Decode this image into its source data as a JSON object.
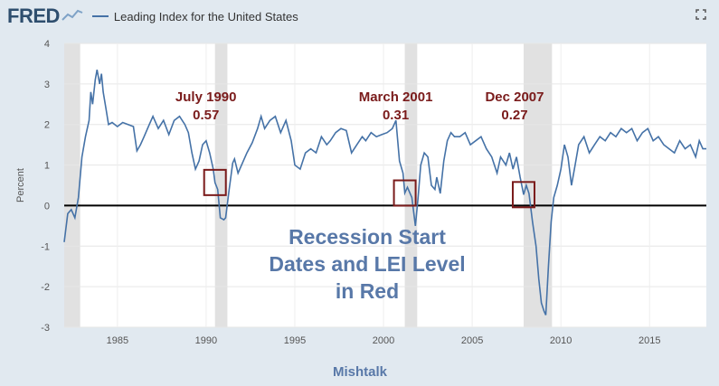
{
  "header": {
    "logo_text": "FRED",
    "series_label": "Leading Index for the United States",
    "fullscreen_icon": "fullscreen-icon"
  },
  "footer_text": "Mishtalk",
  "overlay_lines": [
    "Recession Start",
    "Dates and LEI Level",
    "in Red"
  ],
  "colors": {
    "line": "#4572a7",
    "recession": "#e1e1e1",
    "annotation": "#7a1b1b",
    "overlay": "#5878a8",
    "background": "#e1e9f0"
  },
  "chart_data": {
    "type": "line",
    "ylabel": "Percent",
    "xlim": [
      1982,
      2018.2
    ],
    "ylim": [
      -3,
      4
    ],
    "yticks": [
      -3,
      -2,
      -1,
      0,
      1,
      2,
      3,
      4
    ],
    "xticks": [
      1985,
      1990,
      1995,
      2000,
      2005,
      2010,
      2015
    ],
    "grid": true,
    "recessions": [
      [
        1982.0,
        1982.9
      ],
      [
        1990.5,
        1991.2
      ],
      [
        2001.2,
        2001.9
      ],
      [
        2007.9,
        2009.5
      ]
    ],
    "annotations": [
      {
        "label": "July 1990",
        "value": "0.57",
        "x": 1990.5,
        "y": 0.57
      },
      {
        "label": "March 2001",
        "value": "0.31",
        "x": 2001.2,
        "y": 0.31
      },
      {
        "label": "Dec 2007",
        "value": "0.27",
        "x": 2007.9,
        "y": 0.27
      }
    ],
    "series": [
      {
        "points": [
          [
            1982.0,
            -0.9
          ],
          [
            1982.2,
            -0.2
          ],
          [
            1982.4,
            -0.1
          ],
          [
            1982.6,
            -0.3
          ],
          [
            1982.8,
            0.2
          ],
          [
            1983.0,
            1.2
          ],
          [
            1983.2,
            1.7
          ],
          [
            1983.4,
            2.1
          ],
          [
            1983.5,
            2.8
          ],
          [
            1983.6,
            2.5
          ],
          [
            1983.75,
            3.1
          ],
          [
            1983.85,
            3.35
          ],
          [
            1984.0,
            3.0
          ],
          [
            1984.1,
            3.25
          ],
          [
            1984.2,
            2.8
          ],
          [
            1984.35,
            2.4
          ],
          [
            1984.5,
            2.0
          ],
          [
            1984.7,
            2.05
          ],
          [
            1985.0,
            1.95
          ],
          [
            1985.3,
            2.05
          ],
          [
            1985.6,
            2.0
          ],
          [
            1985.9,
            1.95
          ],
          [
            1986.1,
            1.35
          ],
          [
            1986.3,
            1.5
          ],
          [
            1986.5,
            1.7
          ],
          [
            1986.8,
            2.0
          ],
          [
            1987.0,
            2.2
          ],
          [
            1987.3,
            1.9
          ],
          [
            1987.6,
            2.1
          ],
          [
            1987.9,
            1.75
          ],
          [
            1988.2,
            2.1
          ],
          [
            1988.5,
            2.2
          ],
          [
            1988.8,
            2.0
          ],
          [
            1989.0,
            1.8
          ],
          [
            1989.2,
            1.3
          ],
          [
            1989.4,
            0.9
          ],
          [
            1989.6,
            1.1
          ],
          [
            1989.8,
            1.5
          ],
          [
            1990.0,
            1.6
          ],
          [
            1990.2,
            1.3
          ],
          [
            1990.4,
            0.9
          ],
          [
            1990.5,
            0.57
          ],
          [
            1990.65,
            0.4
          ],
          [
            1990.8,
            -0.3
          ],
          [
            1991.0,
            -0.35
          ],
          [
            1991.1,
            -0.3
          ],
          [
            1991.3,
            0.4
          ],
          [
            1991.5,
            1.05
          ],
          [
            1991.6,
            1.15
          ],
          [
            1991.8,
            0.8
          ],
          [
            1992.0,
            1.0
          ],
          [
            1992.3,
            1.3
          ],
          [
            1992.6,
            1.55
          ],
          [
            1992.9,
            1.9
          ],
          [
            1993.1,
            2.2
          ],
          [
            1993.3,
            1.9
          ],
          [
            1993.6,
            2.1
          ],
          [
            1993.9,
            2.2
          ],
          [
            1994.2,
            1.8
          ],
          [
            1994.5,
            2.1
          ],
          [
            1994.8,
            1.6
          ],
          [
            1995.0,
            1.0
          ],
          [
            1995.3,
            0.9
          ],
          [
            1995.6,
            1.3
          ],
          [
            1995.9,
            1.4
          ],
          [
            1996.2,
            1.3
          ],
          [
            1996.5,
            1.7
          ],
          [
            1996.8,
            1.5
          ],
          [
            1997.0,
            1.6
          ],
          [
            1997.3,
            1.8
          ],
          [
            1997.6,
            1.9
          ],
          [
            1997.9,
            1.85
          ],
          [
            1998.2,
            1.3
          ],
          [
            1998.5,
            1.5
          ],
          [
            1998.8,
            1.7
          ],
          [
            1999.0,
            1.6
          ],
          [
            1999.3,
            1.8
          ],
          [
            1999.6,
            1.7
          ],
          [
            1999.9,
            1.75
          ],
          [
            2000.2,
            1.8
          ],
          [
            2000.5,
            1.9
          ],
          [
            2000.7,
            2.1
          ],
          [
            2000.9,
            1.1
          ],
          [
            2001.1,
            0.8
          ],
          [
            2001.2,
            0.31
          ],
          [
            2001.35,
            0.45
          ],
          [
            2001.6,
            0.2
          ],
          [
            2001.8,
            -0.5
          ],
          [
            2001.95,
            0.2
          ],
          [
            2002.1,
            1.0
          ],
          [
            2002.3,
            1.3
          ],
          [
            2002.5,
            1.2
          ],
          [
            2002.7,
            0.5
          ],
          [
            2002.9,
            0.4
          ],
          [
            2003.0,
            0.7
          ],
          [
            2003.2,
            0.3
          ],
          [
            2003.4,
            1.1
          ],
          [
            2003.6,
            1.6
          ],
          [
            2003.8,
            1.8
          ],
          [
            2004.0,
            1.7
          ],
          [
            2004.3,
            1.7
          ],
          [
            2004.6,
            1.8
          ],
          [
            2004.9,
            1.5
          ],
          [
            2005.2,
            1.6
          ],
          [
            2005.5,
            1.7
          ],
          [
            2005.8,
            1.4
          ],
          [
            2006.1,
            1.2
          ],
          [
            2006.4,
            0.8
          ],
          [
            2006.6,
            1.2
          ],
          [
            2006.9,
            1.0
          ],
          [
            2007.1,
            1.3
          ],
          [
            2007.3,
            0.9
          ],
          [
            2007.5,
            1.2
          ],
          [
            2007.7,
            0.7
          ],
          [
            2007.9,
            0.27
          ],
          [
            2008.05,
            0.5
          ],
          [
            2008.2,
            0.3
          ],
          [
            2008.4,
            -0.4
          ],
          [
            2008.6,
            -1.0
          ],
          [
            2008.75,
            -1.8
          ],
          [
            2008.9,
            -2.4
          ],
          [
            2009.05,
            -2.6
          ],
          [
            2009.15,
            -2.7
          ],
          [
            2009.3,
            -1.5
          ],
          [
            2009.45,
            -0.4
          ],
          [
            2009.6,
            0.2
          ],
          [
            2009.8,
            0.5
          ],
          [
            2010.0,
            0.9
          ],
          [
            2010.2,
            1.5
          ],
          [
            2010.4,
            1.2
          ],
          [
            2010.6,
            0.5
          ],
          [
            2010.8,
            1.0
          ],
          [
            2011.0,
            1.5
          ],
          [
            2011.3,
            1.7
          ],
          [
            2011.6,
            1.3
          ],
          [
            2011.9,
            1.5
          ],
          [
            2012.2,
            1.7
          ],
          [
            2012.5,
            1.6
          ],
          [
            2012.8,
            1.8
          ],
          [
            2013.1,
            1.7
          ],
          [
            2013.4,
            1.9
          ],
          [
            2013.7,
            1.8
          ],
          [
            2014.0,
            1.9
          ],
          [
            2014.3,
            1.6
          ],
          [
            2014.6,
            1.8
          ],
          [
            2014.9,
            1.9
          ],
          [
            2015.2,
            1.6
          ],
          [
            2015.5,
            1.7
          ],
          [
            2015.8,
            1.5
          ],
          [
            2016.1,
            1.4
          ],
          [
            2016.4,
            1.3
          ],
          [
            2016.7,
            1.6
          ],
          [
            2017.0,
            1.4
          ],
          [
            2017.3,
            1.5
          ],
          [
            2017.6,
            1.2
          ],
          [
            2017.8,
            1.6
          ],
          [
            2018.0,
            1.4
          ],
          [
            2018.2,
            1.4
          ]
        ]
      }
    ]
  }
}
